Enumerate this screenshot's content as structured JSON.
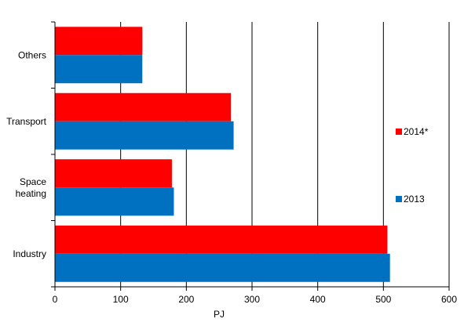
{
  "chart_data": {
    "type": "bar",
    "orientation": "horizontal",
    "categories": [
      "Others",
      "Transport",
      "Space\nheating",
      "Industry"
    ],
    "series": [
      {
        "name": "2014*",
        "color": "#ff0000",
        "values": [
          133,
          268,
          178,
          506
        ]
      },
      {
        "name": "2013",
        "color": "#0070c0",
        "values": [
          133,
          272,
          181,
          510
        ]
      }
    ],
    "xlabel": "PJ",
    "ylabel": "",
    "xlim": [
      0,
      600
    ],
    "xticks": [
      0,
      100,
      200,
      300,
      400,
      500,
      600
    ],
    "grid": "vertical",
    "legend_position": "right"
  }
}
